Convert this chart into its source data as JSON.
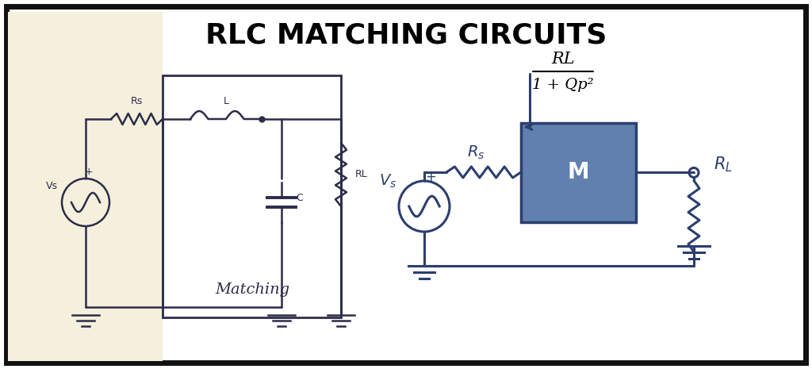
{
  "title": "RLC MATCHING CIRCUITS",
  "title_fontsize": 26,
  "title_fontweight": "bold",
  "bg_color": "#ffffff",
  "border_color": "#111111",
  "circuit_color": "#2c2c4a",
  "blue_color": "#2c3e6e",
  "blue_box_color": "#6080b0",
  "beige_color": "#f5f0dc",
  "formula_RL": "RL",
  "formula_denom": "1 + Qp²",
  "label_Rs_left": "Rs",
  "label_L": "L",
  "label_C": "C",
  "label_RL_left": "RL",
  "label_Vs_left": "Vs",
  "label_matching": "Matching",
  "label_Rs_right": "$R_s$",
  "label_Vs_right": "$V_s$",
  "label_RL_right": "$R_L$",
  "label_M": "M",
  "figsize": [
    10.24,
    4.65
  ],
  "dpi": 100
}
